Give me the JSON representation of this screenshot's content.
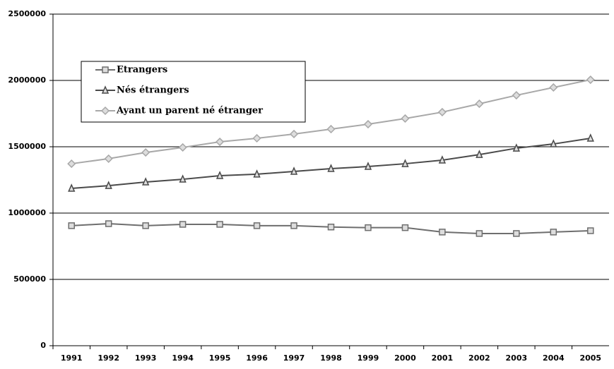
{
  "chart_data": {
    "type": "line",
    "categories": [
      "1991",
      "1992",
      "1993",
      "1994",
      "1995",
      "1996",
      "1997",
      "1998",
      "1999",
      "2000",
      "2001",
      "2002",
      "2003",
      "2004",
      "2005"
    ],
    "series": [
      {
        "name": "Etrangers",
        "color": "#6e6e6e",
        "marker": "square",
        "values": [
          905000,
          920000,
          905000,
          915000,
          915000,
          905000,
          905000,
          895000,
          890000,
          890000,
          857000,
          846000,
          846000,
          857000,
          867000
        ]
      },
      {
        "name": "Nés étrangers",
        "color": "#4a4a4a",
        "marker": "triangle",
        "values": [
          1186000,
          1207000,
          1234000,
          1255000,
          1282000,
          1293000,
          1314000,
          1335000,
          1351000,
          1372000,
          1399000,
          1441000,
          1489000,
          1521000,
          1564000
        ]
      },
      {
        "name": "Ayant un parent né étranger",
        "color": "#a8a8a8",
        "marker": "diamond",
        "values": [
          1372000,
          1410000,
          1457000,
          1495000,
          1537000,
          1564000,
          1596000,
          1633000,
          1670000,
          1713000,
          1761000,
          1824000,
          1888000,
          1947000,
          2005000
        ]
      }
    ],
    "ylim": [
      0,
      2500000
    ],
    "yticks": [
      0,
      500000,
      1000000,
      1500000,
      2000000,
      2500000
    ],
    "grid": true,
    "legend": "upper left"
  }
}
